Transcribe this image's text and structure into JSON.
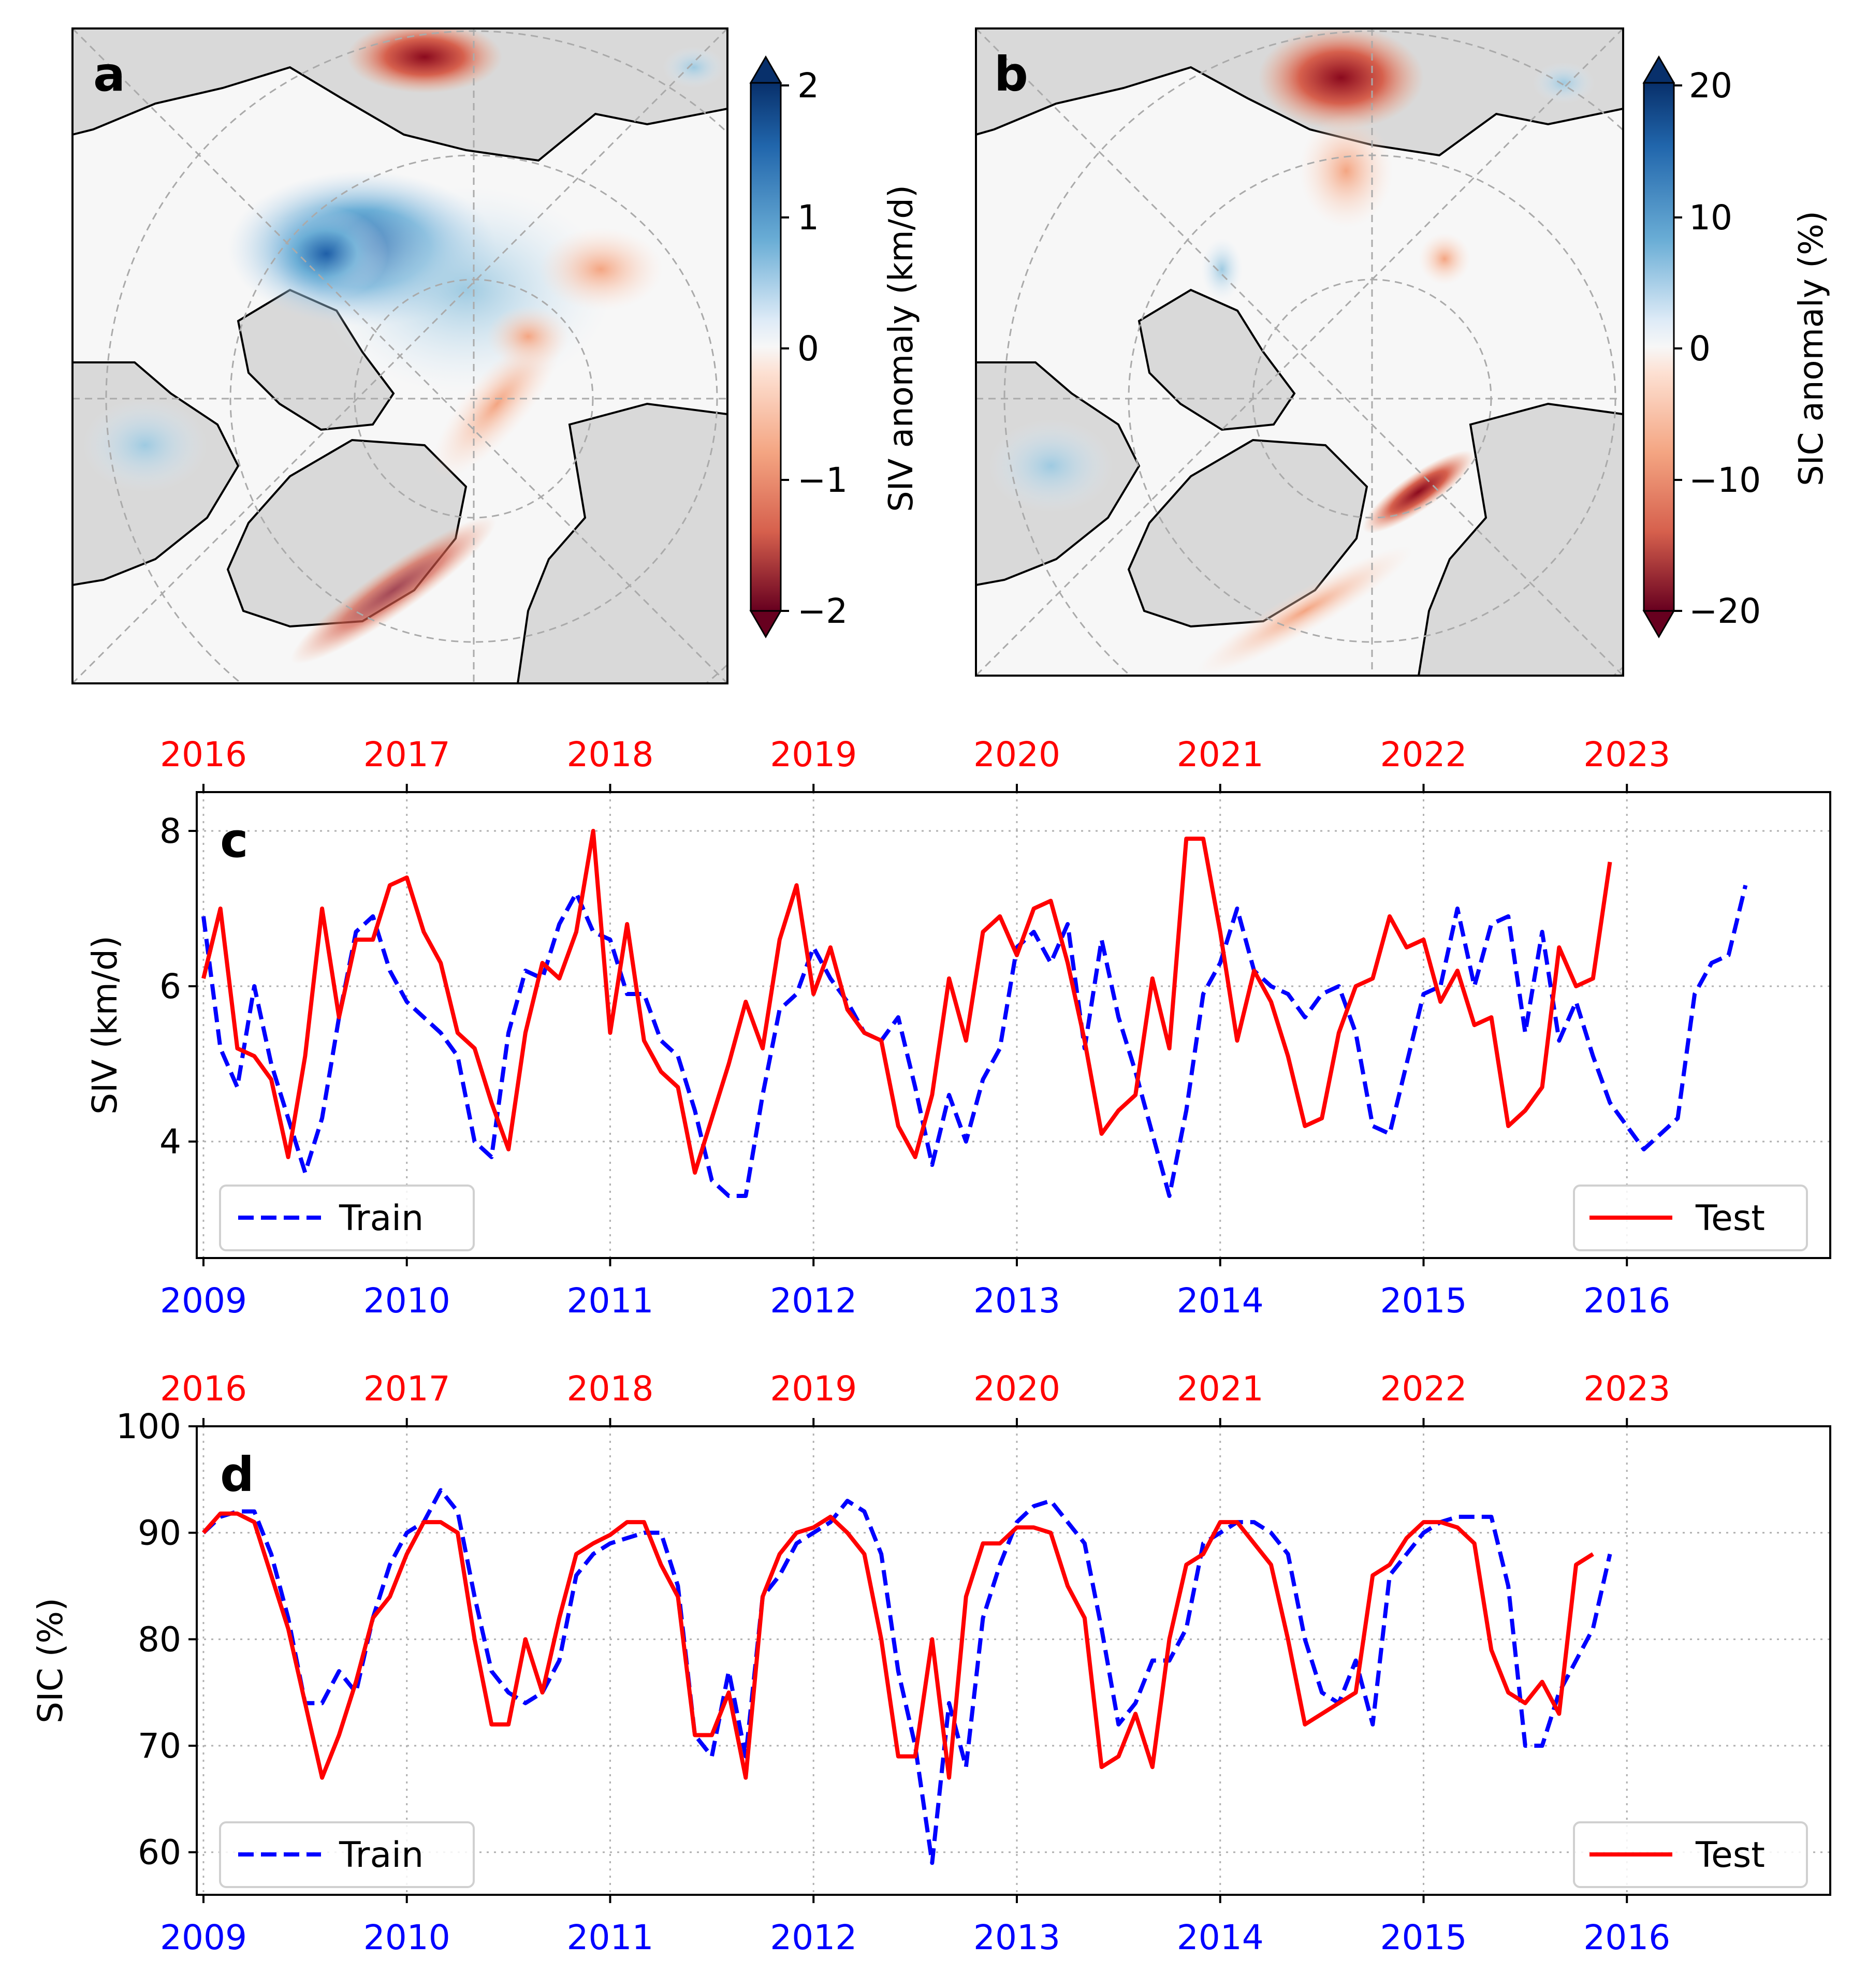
{
  "panel_a": {
    "label": "a",
    "colorbar": {
      "label": "SIV anomaly (km/d)",
      "ticks": [
        "2",
        "1",
        "0",
        "−1",
        "−2"
      ],
      "cmap_top": "#08306b",
      "cmap_bottom": "#67001f"
    }
  },
  "panel_b": {
    "label": "b",
    "colorbar": {
      "label": "SIC anomaly (%)",
      "ticks": [
        "20",
        "10",
        "0",
        "−10",
        "−20"
      ],
      "cmap_top": "#08306b",
      "cmap_bottom": "#67001f"
    }
  },
  "colors": {
    "train": "#0000ff",
    "test": "#ff0000",
    "land": "#d9d9d9",
    "ocean": "#f7f7f7"
  },
  "chart_data": [
    {
      "id": "c",
      "label": "c",
      "type": "line",
      "ylabel": "SIV (km/d)",
      "ylim": [
        2.5,
        8.5
      ],
      "yticks": [
        4,
        6,
        8
      ],
      "xlim": [
        -0.033,
        8.0
      ],
      "train_years": [
        "2009",
        "2010",
        "2011",
        "2012",
        "2013",
        "2014",
        "2015",
        "2016"
      ],
      "test_years": [
        "2016",
        "2017",
        "2018",
        "2019",
        "2020",
        "2021",
        "2022",
        "2023"
      ],
      "legend": {
        "train": "Train",
        "test": "Test"
      },
      "series": [
        {
          "name": "Train",
          "style": "dashed",
          "color": "#0000ff",
          "values": [
            6.9,
            5.2,
            4.7,
            6.0,
            5.0,
            4.3,
            3.6,
            4.3,
            5.6,
            6.7,
            6.9,
            6.2,
            5.8,
            5.6,
            5.4,
            5.1,
            4.0,
            3.8,
            5.4,
            6.2,
            6.1,
            6.8,
            7.2,
            6.7,
            6.6,
            5.9,
            5.9,
            5.3,
            5.1,
            4.4,
            3.5,
            3.3,
            3.3,
            4.6,
            5.7,
            5.9,
            6.5,
            6.1,
            5.8,
            5.4,
            5.3,
            5.6,
            4.7,
            3.7,
            4.6,
            4.0,
            4.8,
            5.2,
            6.5,
            6.7,
            6.3,
            6.8,
            5.2,
            6.6,
            5.6,
            4.9,
            4.1,
            3.3,
            4.4,
            5.9,
            6.3,
            7.0,
            6.2,
            6.0,
            5.9,
            5.6,
            5.9,
            6.0,
            5.4,
            4.2,
            4.1,
            5.0,
            5.9,
            6.0,
            7.0,
            6.0,
            6.8,
            6.9,
            5.4,
            6.7,
            5.3,
            5.8,
            5.1,
            4.5,
            4.2,
            3.9,
            4.1,
            4.3,
            5.9,
            6.3,
            6.4,
            7.3
          ]
        },
        {
          "name": "Test",
          "style": "solid",
          "color": "#ff0000",
          "values": [
            6.1,
            7.0,
            5.2,
            5.1,
            4.8,
            3.8,
            5.1,
            7.0,
            5.6,
            6.6,
            6.6,
            7.3,
            7.4,
            6.7,
            6.3,
            5.4,
            5.2,
            4.5,
            3.9,
            5.4,
            6.3,
            6.1,
            6.7,
            8.0,
            5.4,
            6.8,
            5.3,
            4.9,
            4.7,
            3.6,
            4.3,
            5.0,
            5.8,
            5.2,
            6.6,
            7.3,
            5.9,
            6.5,
            5.7,
            5.4,
            5.3,
            4.2,
            3.8,
            4.6,
            6.1,
            5.3,
            6.7,
            6.9,
            6.4,
            7.0,
            7.1,
            6.3,
            5.3,
            4.1,
            4.4,
            4.6,
            6.1,
            5.2,
            7.9,
            7.9,
            6.7,
            5.3,
            6.2,
            5.8,
            5.1,
            4.2,
            4.3,
            5.4,
            6.0,
            6.1,
            6.9,
            6.5,
            6.6,
            5.8,
            6.2,
            5.5,
            5.6,
            4.2,
            4.4,
            4.7,
            6.5,
            6.0,
            6.1,
            7.6
          ]
        }
      ]
    },
    {
      "id": "d",
      "label": "d",
      "type": "line",
      "ylabel": "SIC (%)",
      "ylim": [
        56,
        100
      ],
      "yticks": [
        60,
        70,
        80,
        90,
        100
      ],
      "xlim": [
        -0.033,
        8.0
      ],
      "train_years": [
        "2009",
        "2010",
        "2011",
        "2012",
        "2013",
        "2014",
        "2015",
        "2016"
      ],
      "test_years": [
        "2016",
        "2017",
        "2018",
        "2019",
        "2020",
        "2021",
        "2022",
        "2023"
      ],
      "legend": {
        "train": "Train",
        "test": "Test"
      },
      "series": [
        {
          "name": "Train",
          "style": "dashed",
          "color": "#0000ff",
          "values": [
            90,
            91.5,
            92,
            92,
            88,
            82,
            74,
            74,
            77,
            75,
            82,
            87,
            90,
            91,
            94,
            92,
            84,
            77,
            75,
            74,
            75,
            78,
            86,
            88,
            89,
            89.5,
            90,
            90,
            85,
            71,
            69,
            77,
            69,
            84,
            86,
            89,
            90,
            91,
            93,
            92,
            88,
            77,
            70,
            59,
            74,
            68,
            82,
            87,
            91,
            92.5,
            93,
            91,
            89,
            81,
            72,
            74,
            78,
            78,
            81,
            89,
            90,
            91,
            91,
            90,
            88,
            80,
            75,
            74,
            78,
            72,
            86,
            88,
            90,
            91,
            91.5,
            91.5,
            91.5,
            85,
            70,
            70,
            75,
            78,
            81,
            88
          ]
        },
        {
          "name": "Test",
          "style": "solid",
          "color": "#ff0000",
          "values": [
            90,
            91.8,
            91.8,
            91,
            86,
            81,
            74,
            67,
            71,
            76,
            82,
            84,
            88,
            91,
            91,
            90,
            80,
            72,
            72,
            80,
            75,
            82,
            88,
            89,
            89.8,
            91,
            91,
            87,
            84,
            71,
            71,
            75,
            67,
            84,
            88,
            90,
            90.5,
            91.5,
            90,
            88,
            80,
            69,
            69,
            80,
            67,
            84,
            89,
            89,
            90.5,
            90.5,
            90,
            85,
            82,
            68,
            69,
            73,
            68,
            80,
            87,
            88,
            91,
            91,
            89,
            87,
            80,
            72,
            73,
            74,
            75,
            86,
            87,
            89.5,
            91,
            91,
            90.5,
            89,
            79,
            75,
            74,
            76,
            73,
            87,
            88
          ]
        }
      ]
    }
  ]
}
